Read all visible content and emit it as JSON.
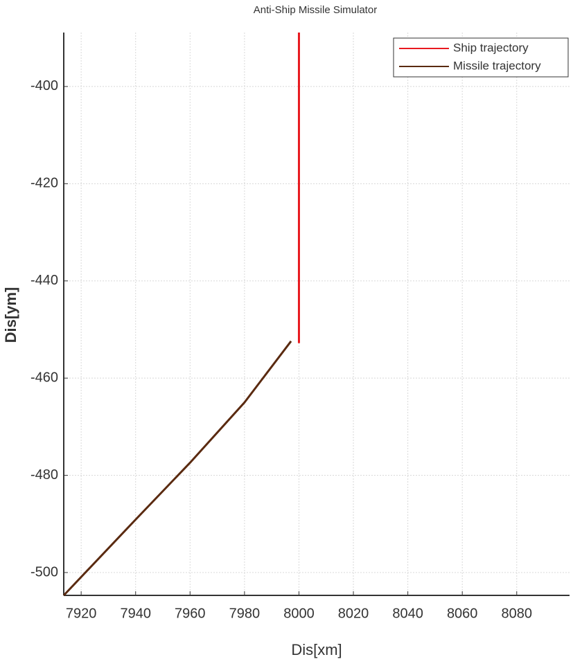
{
  "chart_data": {
    "type": "line",
    "title": "Anti-Ship Missile Simulator",
    "xlabel": "Dis[xm]",
    "ylabel": "Dis[ym]",
    "xlim": [
      7913.6,
      8099.4
    ],
    "ylim": [
      -504.7,
      -388.9
    ],
    "xticks": [
      7920,
      7940,
      7960,
      7980,
      8000,
      8020,
      8040,
      8060,
      8080
    ],
    "yticks": [
      -500,
      -480,
      -460,
      -440,
      -420,
      -400
    ],
    "grid": true,
    "legend": "upper right",
    "series": [
      {
        "name": "Ship trajectory",
        "color": "#e8191f",
        "x": [
          8000,
          8000
        ],
        "values": [
          -388.9,
          -452.8
        ]
      },
      {
        "name": "Missile trajectory",
        "color": "#5a2a10",
        "x": [
          7913.6,
          7940,
          7960,
          7980,
          7997.1
        ],
        "values": [
          -504.7,
          -489.1,
          -477.4,
          -465.0,
          -452.4
        ]
      }
    ]
  }
}
